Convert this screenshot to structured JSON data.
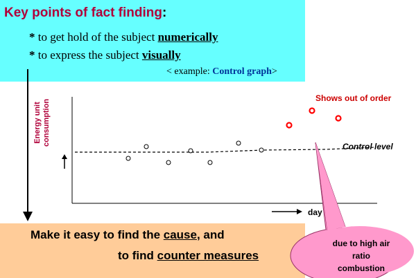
{
  "title": {
    "main": "Key points of fact finding",
    "colon": ":"
  },
  "bullets": [
    {
      "star": "*",
      "pre": " to get hold of the subject ",
      "em": "numerically"
    },
    {
      "star": "*",
      "pre": " to express the subject ",
      "em": "visually"
    }
  ],
  "example": {
    "pre": "< example: ",
    "strong": "Control graph",
    "post": ">"
  },
  "graph": {
    "y_label_line1": "Energy unit",
    "y_label_line2": "consumption",
    "x_label": "day",
    "control_level_label": "Control level",
    "out_of_order_label": "Shows out of order"
  },
  "callout": {
    "line1": "due to high air",
    "line2": "ratio",
    "line3": "combustion"
  },
  "bottom": {
    "line1_pre": "Make it easy to find the ",
    "line1_em": "cause",
    "line1_post": ", and",
    "line2_pre": "to find ",
    "line2_em": "counter measures"
  },
  "colors": {
    "top_box": "#66ffff",
    "bottom_box": "#ffcc99",
    "callout": "#ff99cc",
    "title": "#b0003a",
    "out_of_order": "#ff0000"
  },
  "chart_data": {
    "type": "scatter",
    "note": "conceptual control graph, no numeric axes",
    "normal_points": 8,
    "out_of_order_points": 3
  }
}
